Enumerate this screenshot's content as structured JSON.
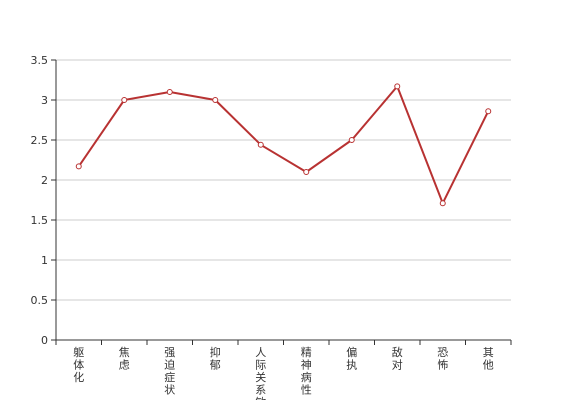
{
  "chart_data": {
    "type": "line",
    "categories": [
      "躯体化",
      "焦虑",
      "强迫症状",
      "抑郁",
      "人际关系敏感",
      "精神病性",
      "偏执",
      "敌对",
      "恐怖",
      "其他"
    ],
    "series": [
      {
        "values": [
          2.17,
          3.0,
          3.1,
          3.0,
          2.44,
          2.1,
          2.5,
          3.17,
          1.71,
          2.86
        ]
      }
    ],
    "yticks": [
      "0",
      "0.5",
      "1",
      "1.5",
      "2",
      "2.5",
      "3",
      "3.5"
    ],
    "ylim": [
      0,
      3.5
    ],
    "grid": true,
    "colors": {
      "line": "#b83232",
      "grid": "#cccccc",
      "axis": "#333333",
      "marker_fill": "#ffffff"
    }
  }
}
